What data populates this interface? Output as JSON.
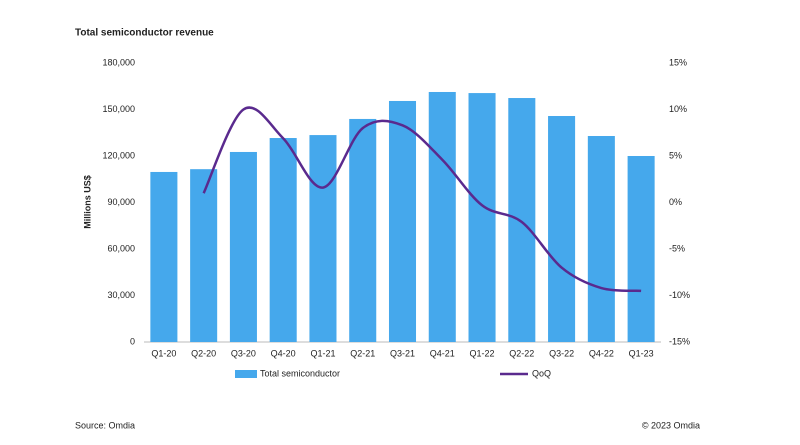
{
  "chart_data": {
    "type": "bar-line",
    "title": "Total semiconductor revenue",
    "y_label": "Millions US$",
    "source": "Source: Omdia",
    "copyright": "© 2023 Omdia",
    "categories": [
      "Q1-20",
      "Q2-20",
      "Q3-20",
      "Q4-20",
      "Q1-21",
      "Q2-21",
      "Q3-21",
      "Q4-21",
      "Q1-22",
      "Q2-22",
      "Q3-22",
      "Q4-22",
      "Q1-23"
    ],
    "series": [
      {
        "name": "Total semiconductor",
        "type": "bar",
        "color": "#45a8ec",
        "values": [
          109700,
          111500,
          122600,
          131600,
          133500,
          143900,
          155500,
          161300,
          160600,
          157400,
          145800,
          132900,
          120000
        ]
      },
      {
        "name": "QoQ",
        "type": "line",
        "axis": "y2",
        "color": "#5a2a8e",
        "values": [
          null,
          1.0,
          10.0,
          6.9,
          1.6,
          8.0,
          8.3,
          4.6,
          -0.3,
          -2.1,
          -7.0,
          -9.2,
          -9.5
        ]
      }
    ],
    "ylim": [
      0,
      180000
    ],
    "yticks": [
      0,
      {
        "value": 30000,
        "label": "30,000"
      },
      {
        "value": 60000,
        "label": "60,000"
      },
      {
        "value": 90000,
        "label": "90,000"
      },
      {
        "value": 120000,
        "label": "120,000"
      },
      {
        "value": 150000,
        "label": "150,000"
      },
      {
        "value": 180000,
        "label": "180,000"
      }
    ],
    "y2lim": [
      -15,
      15
    ],
    "y2ticks": [
      {
        "value": -15,
        "label": "-15%"
      },
      {
        "value": -10,
        "label": "-10%"
      },
      {
        "value": -5,
        "label": "-5%"
      },
      {
        "value": 0,
        "label": "0%"
      },
      {
        "value": 5,
        "label": "5%"
      },
      {
        "value": 10,
        "label": "10%"
      },
      {
        "value": 15,
        "label": "15%"
      }
    ],
    "legend": "bottom",
    "grid": false
  }
}
